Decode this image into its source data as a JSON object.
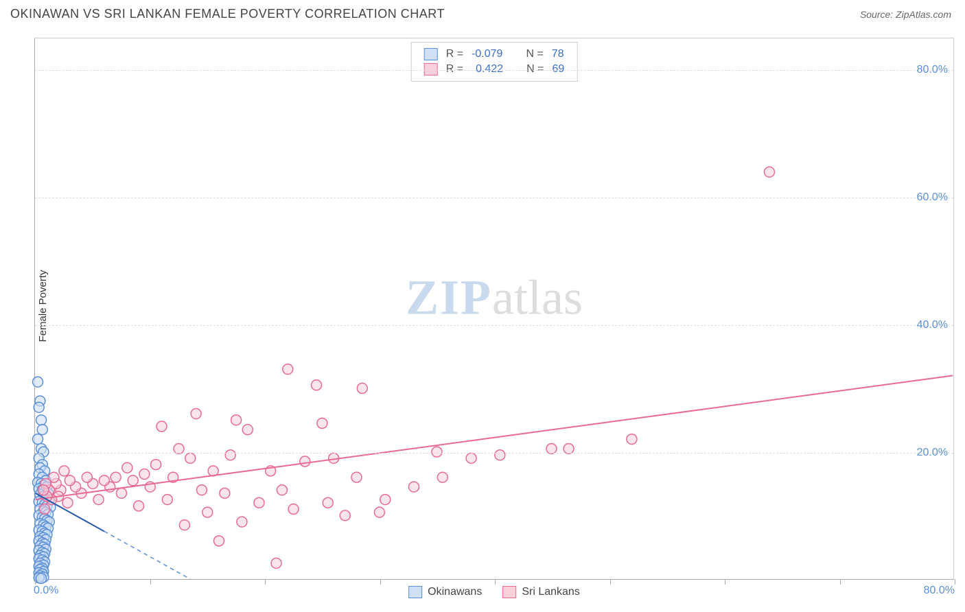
{
  "title": "OKINAWAN VS SRI LANKAN FEMALE POVERTY CORRELATION CHART",
  "source_label": "Source: ZipAtlas.com",
  "y_axis_label": "Female Poverty",
  "watermark_a": "ZIP",
  "watermark_b": "atlas",
  "chart": {
    "type": "scatter",
    "xlim": [
      0,
      80
    ],
    "ylim": [
      0,
      85
    ],
    "y_ticks": [
      20,
      40,
      60,
      80
    ],
    "y_tick_labels": [
      "20.0%",
      "40.0%",
      "60.0%",
      "80.0%"
    ],
    "x_ticks": [
      0,
      10,
      20,
      30,
      40,
      50,
      60,
      70,
      80
    ],
    "x_origin_label": "0.0%",
    "x_far_label": "80.0%",
    "grid_color": "#dddddd",
    "background_color": "#ffffff",
    "axis_color": "#aaaaaa",
    "marker_radius": 7.5,
    "marker_stroke_width": 1.5,
    "trend_line_width": 2,
    "trend_dash_width": 1.5
  },
  "series": {
    "okinawans": {
      "label": "Okinawans",
      "fill": "#cfe0f5",
      "stroke": "#5b8fd6",
      "fill_opacity": 0.6,
      "R": "-0.079",
      "N": "78",
      "trend_solid": {
        "x1": 0,
        "y1": 13.5,
        "x2": 6,
        "y2": 7.5
      },
      "trend_dash": {
        "x1": 6,
        "y1": 7.5,
        "x2": 13.5,
        "y2": 0
      },
      "points": [
        [
          0.2,
          31.0
        ],
        [
          0.4,
          28.0
        ],
        [
          0.3,
          27.0
        ],
        [
          0.5,
          25.0
        ],
        [
          0.6,
          23.5
        ],
        [
          0.2,
          22.0
        ],
        [
          0.5,
          20.5
        ],
        [
          0.7,
          20.0
        ],
        [
          0.3,
          19.0
        ],
        [
          0.6,
          18.0
        ],
        [
          0.4,
          17.5
        ],
        [
          0.8,
          17.0
        ],
        [
          0.3,
          16.5
        ],
        [
          0.6,
          16.0
        ],
        [
          0.9,
          15.5
        ],
        [
          0.2,
          15.2
        ],
        [
          0.5,
          15.0
        ],
        [
          0.7,
          14.7
        ],
        [
          1.0,
          14.5
        ],
        [
          0.3,
          14.2
        ],
        [
          0.6,
          14.0
        ],
        [
          0.8,
          13.7
        ],
        [
          1.1,
          13.5
        ],
        [
          0.4,
          13.3
        ],
        [
          0.7,
          13.0
        ],
        [
          0.9,
          12.7
        ],
        [
          1.2,
          12.5
        ],
        [
          0.3,
          12.2
        ],
        [
          0.6,
          12.0
        ],
        [
          0.8,
          11.7
        ],
        [
          1.0,
          11.5
        ],
        [
          1.3,
          11.3
        ],
        [
          0.4,
          11.0
        ],
        [
          0.7,
          10.7
        ],
        [
          0.9,
          10.5
        ],
        [
          1.1,
          10.2
        ],
        [
          0.3,
          10.0
        ],
        [
          0.6,
          9.7
        ],
        [
          0.8,
          9.5
        ],
        [
          1.0,
          9.2
        ],
        [
          1.2,
          9.0
        ],
        [
          0.4,
          8.7
        ],
        [
          0.7,
          8.5
        ],
        [
          0.9,
          8.2
        ],
        [
          1.1,
          8.0
        ],
        [
          0.3,
          7.7
        ],
        [
          0.6,
          7.5
        ],
        [
          0.8,
          7.2
        ],
        [
          1.0,
          7.0
        ],
        [
          0.4,
          6.7
        ],
        [
          0.7,
          6.5
        ],
        [
          0.9,
          6.2
        ],
        [
          0.3,
          6.0
        ],
        [
          0.6,
          5.7
        ],
        [
          0.8,
          5.5
        ],
        [
          0.4,
          5.2
        ],
        [
          0.7,
          5.0
        ],
        [
          0.9,
          4.7
        ],
        [
          0.3,
          4.5
        ],
        [
          0.6,
          4.2
        ],
        [
          0.8,
          4.0
        ],
        [
          0.4,
          3.7
        ],
        [
          0.7,
          3.5
        ],
        [
          0.3,
          3.2
        ],
        [
          0.6,
          3.0
        ],
        [
          0.8,
          2.7
        ],
        [
          0.4,
          2.5
        ],
        [
          0.7,
          2.2
        ],
        [
          0.3,
          2.0
        ],
        [
          0.6,
          1.7
        ],
        [
          0.4,
          1.5
        ],
        [
          0.7,
          1.2
        ],
        [
          0.3,
          1.0
        ],
        [
          0.6,
          0.8
        ],
        [
          0.4,
          0.5
        ],
        [
          0.7,
          0.3
        ],
        [
          0.3,
          0.2
        ],
        [
          0.5,
          0.1
        ]
      ]
    },
    "srilankans": {
      "label": "Sri Lankans",
      "fill": "#f7d0dc",
      "stroke": "#e86a93",
      "fill_opacity": 0.55,
      "R": "0.422",
      "N": "69",
      "trend_solid": {
        "x1": 0,
        "y1": 12.5,
        "x2": 80,
        "y2": 32.0
      },
      "points": [
        [
          64.0,
          64.0
        ],
        [
          22.0,
          33.0
        ],
        [
          28.5,
          30.0
        ],
        [
          24.5,
          30.5
        ],
        [
          25.0,
          24.5
        ],
        [
          52.0,
          22.0
        ],
        [
          17.5,
          25.0
        ],
        [
          18.5,
          23.5
        ],
        [
          14.0,
          26.0
        ],
        [
          12.5,
          20.5
        ],
        [
          11.0,
          24.0
        ],
        [
          45.0,
          20.5
        ],
        [
          46.5,
          20.5
        ],
        [
          40.5,
          19.5
        ],
        [
          38.0,
          19.0
        ],
        [
          35.5,
          16.0
        ],
        [
          35.0,
          20.0
        ],
        [
          33.0,
          14.5
        ],
        [
          30.5,
          12.5
        ],
        [
          30.0,
          10.5
        ],
        [
          28.0,
          16.0
        ],
        [
          27.0,
          10.0
        ],
        [
          26.0,
          19.0
        ],
        [
          25.5,
          12.0
        ],
        [
          23.5,
          18.5
        ],
        [
          22.5,
          11.0
        ],
        [
          21.5,
          14.0
        ],
        [
          21.0,
          2.5
        ],
        [
          20.5,
          17.0
        ],
        [
          19.5,
          12.0
        ],
        [
          18.0,
          9.0
        ],
        [
          17.0,
          19.5
        ],
        [
          16.5,
          13.5
        ],
        [
          16.0,
          6.0
        ],
        [
          15.5,
          17.0
        ],
        [
          15.0,
          10.5
        ],
        [
          14.5,
          14.0
        ],
        [
          13.5,
          19.0
        ],
        [
          13.0,
          8.5
        ],
        [
          12.0,
          16.0
        ],
        [
          11.5,
          12.5
        ],
        [
          10.5,
          18.0
        ],
        [
          10.0,
          14.5
        ],
        [
          9.5,
          16.5
        ],
        [
          9.0,
          11.5
        ],
        [
          8.5,
          15.5
        ],
        [
          8.0,
          17.5
        ],
        [
          7.5,
          13.5
        ],
        [
          7.0,
          16.0
        ],
        [
          6.5,
          14.5
        ],
        [
          6.0,
          15.5
        ],
        [
          5.5,
          12.5
        ],
        [
          5.0,
          15.0
        ],
        [
          4.5,
          16.0
        ],
        [
          4.0,
          13.5
        ],
        [
          3.5,
          14.5
        ],
        [
          3.0,
          15.5
        ],
        [
          2.8,
          12.0
        ],
        [
          2.5,
          17.0
        ],
        [
          2.2,
          14.0
        ],
        [
          2.0,
          13.0
        ],
        [
          1.8,
          15.0
        ],
        [
          1.6,
          16.0
        ],
        [
          1.4,
          12.5
        ],
        [
          1.2,
          14.0
        ],
        [
          1.0,
          13.0
        ],
        [
          0.9,
          15.0
        ],
        [
          0.8,
          11.0
        ],
        [
          0.7,
          14.0
        ]
      ]
    }
  },
  "stats_legend": {
    "r_prefix": "R =",
    "n_prefix": "N ="
  }
}
